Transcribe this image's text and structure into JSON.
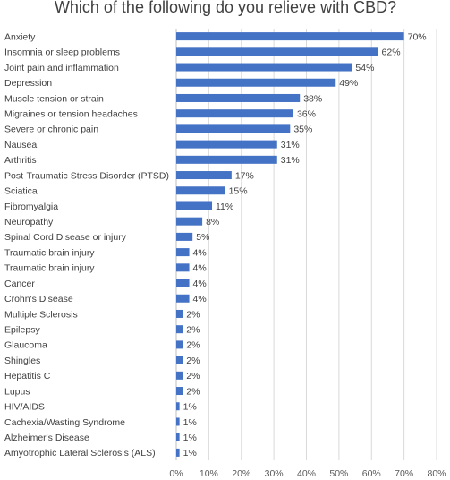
{
  "chart_data": {
    "type": "bar",
    "orientation": "horizontal",
    "title": "Which of the following do you relieve with CBD?",
    "xlabel": "",
    "ylabel": "",
    "xlim": [
      0,
      80
    ],
    "tick_values": [
      0,
      10,
      20,
      30,
      40,
      50,
      60,
      70,
      80
    ],
    "tick_suffix": "%",
    "grid": true,
    "bar_color": "#4472c4",
    "categories": [
      "Anxiety",
      "Insomnia or sleep problems",
      "Joint pain and inflammation",
      "Depression",
      "Muscle tension or strain",
      "Migraines or tension headaches",
      "Severe or chronic pain",
      "Nausea",
      "Arthritis",
      "Post-Traumatic Stress Disorder (PTSD)",
      "Sciatica",
      "Fibromyalgia",
      "Neuropathy",
      "Spinal Cord Disease or injury",
      "Traumatic brain injury",
      "Traumatic brain injury",
      "Cancer",
      "Crohn's Disease",
      "Multiple Sclerosis",
      "Epilepsy",
      "Glaucoma",
      "Shingles",
      "Hepatitis C",
      "Lupus",
      "HIV/AIDS",
      "Cachexia/Wasting Syndrome",
      "Alzheimer's Disease",
      "Amyotrophic Lateral Sclerosis (ALS)"
    ],
    "values": [
      70,
      62,
      54,
      49,
      38,
      36,
      35,
      31,
      31,
      17,
      15,
      11,
      8,
      5,
      4,
      4,
      4,
      4,
      2,
      2,
      2,
      2,
      2,
      2,
      1,
      1,
      1,
      1
    ],
    "data_labels": [
      "70%",
      "62%",
      "54%",
      "49%",
      "38%",
      "36%",
      "35%",
      "31%",
      "31%",
      "17%",
      "15%",
      "11%",
      "8%",
      "5%",
      "4%",
      "4%",
      "4%",
      "4%",
      "2%",
      "2%",
      "2%",
      "2%",
      "2%",
      "2%",
      "1%",
      "1%",
      "1%",
      "1%"
    ]
  }
}
